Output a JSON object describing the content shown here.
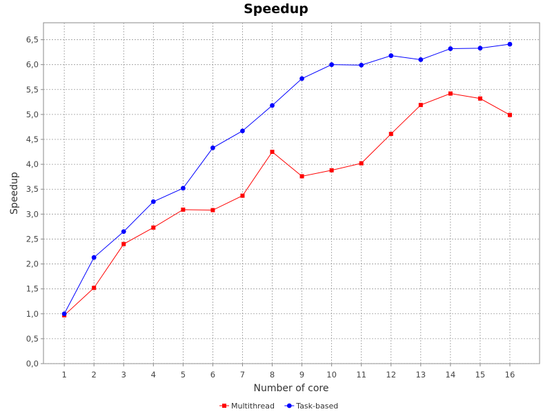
{
  "chart_data": {
    "type": "line",
    "title": "Speedup",
    "xlabel": "Number of core",
    "ylabel": "Speedup",
    "x": [
      1,
      2,
      3,
      4,
      5,
      6,
      7,
      8,
      9,
      10,
      11,
      12,
      13,
      14,
      15,
      16
    ],
    "x_tick_labels": [
      "1",
      "2",
      "3",
      "4",
      "5",
      "6",
      "7",
      "8",
      "9",
      "10",
      "11",
      "12",
      "13",
      "14",
      "15",
      "16"
    ],
    "xlim": [
      0.3,
      17.0
    ],
    "ylim": [
      0,
      6.84
    ],
    "y_ticks": [
      0,
      0.5,
      1,
      1.5,
      2,
      2.5,
      3,
      3.5,
      4,
      4.5,
      5,
      5.5,
      6,
      6.5
    ],
    "y_tick_labels": [
      "0,0",
      "0,5",
      "1,0",
      "1,5",
      "2,0",
      "2,5",
      "3,0",
      "3,5",
      "4,0",
      "4,5",
      "5,0",
      "5,5",
      "6,0",
      "6,5"
    ],
    "grid": true,
    "legend_position": "bottom",
    "series": [
      {
        "name": "Multithread",
        "color": "#ff0000",
        "marker": "square",
        "values": [
          0.97,
          1.52,
          2.4,
          2.73,
          3.09,
          3.08,
          3.37,
          4.25,
          3.76,
          3.88,
          4.02,
          4.61,
          5.19,
          5.42,
          5.32,
          4.99
        ]
      },
      {
        "name": "Task-based",
        "color": "#0000ff",
        "marker": "circle",
        "values": [
          1.0,
          2.13,
          2.65,
          3.25,
          3.52,
          4.33,
          4.67,
          5.18,
          5.72,
          6.0,
          5.99,
          6.18,
          6.1,
          6.32,
          6.33,
          6.41
        ]
      }
    ]
  }
}
